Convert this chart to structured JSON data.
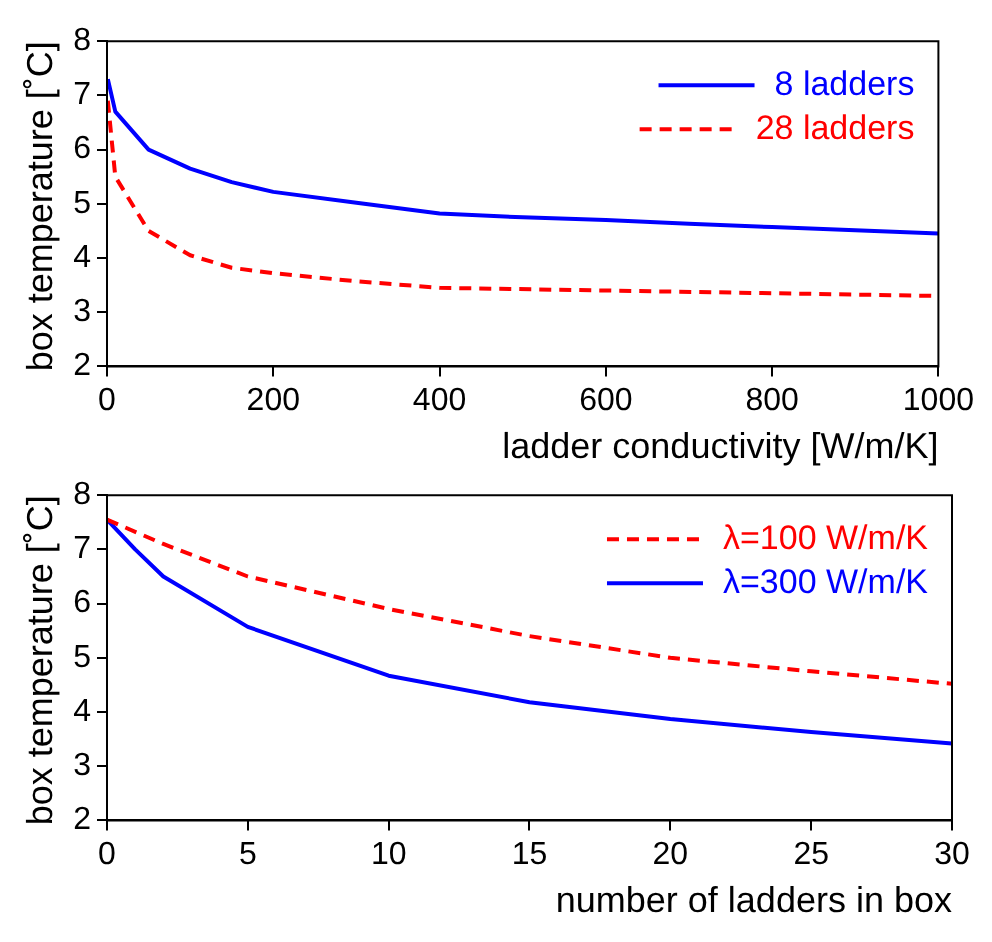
{
  "chart_data": [
    {
      "type": "line",
      "xlabel": "ladder conductivity [W/m/K]",
      "ylabel": "box temperature [˚C]",
      "xlim": [
        0,
        1000
      ],
      "xticks": [
        0,
        200,
        400,
        600,
        800,
        1000
      ],
      "ylim": [
        2,
        8
      ],
      "yticks": [
        2,
        3,
        4,
        5,
        6,
        7,
        8
      ],
      "grid": false,
      "legend": "top right",
      "marker": "none",
      "series": [
        {
          "name": "8 ladders",
          "color": "#0000ff",
          "line_style": "solid",
          "x": [
            1,
            10,
            50,
            100,
            150,
            200,
            300,
            400,
            500,
            600,
            700,
            800,
            900,
            1000
          ],
          "values": [
            7.3,
            6.7,
            6.0,
            5.65,
            5.4,
            5.22,
            5.02,
            4.82,
            4.75,
            4.7,
            4.63,
            4.57,
            4.51,
            4.45
          ]
        },
        {
          "name": "28 ladders",
          "color": "#ff0000",
          "line_style": "dashed",
          "x": [
            1,
            10,
            50,
            100,
            150,
            200,
            300,
            400,
            600,
            800,
            1000
          ],
          "values": [
            6.9,
            5.5,
            4.5,
            4.05,
            3.82,
            3.72,
            3.57,
            3.45,
            3.4,
            3.35,
            3.3
          ]
        }
      ]
    },
    {
      "type": "line",
      "xlabel": "number of ladders in box",
      "ylabel": "box temperature [˚C]",
      "xlim": [
        0,
        30
      ],
      "xticks": [
        0,
        5,
        10,
        15,
        20,
        25,
        30
      ],
      "ylim": [
        2,
        8
      ],
      "yticks": [
        2,
        3,
        4,
        5,
        6,
        7,
        8
      ],
      "grid": false,
      "legend": "top right",
      "marker": "none",
      "series": [
        {
          "name": "λ=100 W/m/K",
          "color": "#ff0000",
          "line_style": "dashed",
          "x": [
            0,
            2,
            5,
            10,
            15,
            20,
            25,
            30
          ],
          "values": [
            7.55,
            7.1,
            6.5,
            5.9,
            5.4,
            5.0,
            4.75,
            4.52
          ]
        },
        {
          "name": "λ=300 W/m/K",
          "color": "#0000ff",
          "line_style": "solid",
          "x": [
            0,
            1,
            2,
            5,
            10,
            15,
            20,
            25,
            30
          ],
          "values": [
            7.55,
            7.0,
            6.5,
            5.57,
            4.67,
            4.18,
            3.87,
            3.63,
            3.42
          ]
        }
      ]
    }
  ]
}
